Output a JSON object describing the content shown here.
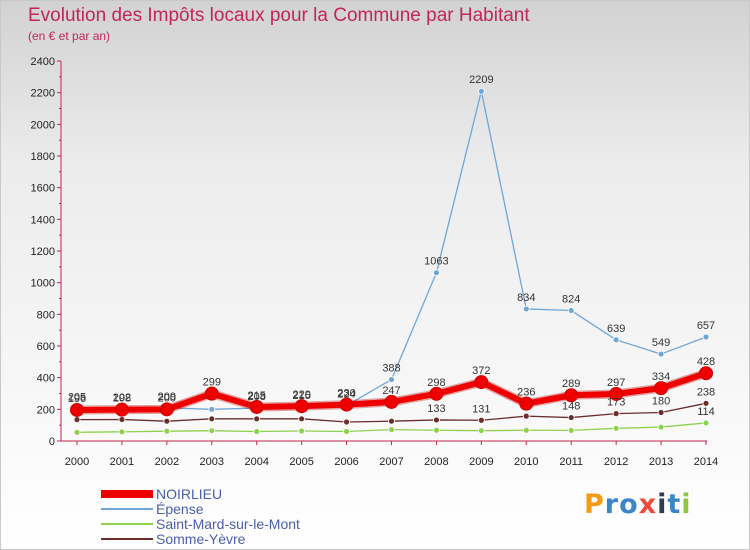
{
  "header": {
    "title": "Evolution des Impôts locaux pour la Commune par Habitant",
    "subtitle": "(en € et par an)"
  },
  "brand": {
    "letters": [
      "P",
      "r",
      "o",
      "x",
      "i",
      "t",
      "i"
    ],
    "colors": [
      "#f39c12",
      "#3a86c8",
      "#3a86c8",
      "#e74c3c",
      "#2c3e50",
      "#3a86c8",
      "#8dc63f"
    ]
  },
  "chart_data": {
    "type": "line",
    "title": "Evolution des Impôts locaux pour la Commune par Habitant",
    "subtitle": "(en € et par an)",
    "xlabel": "",
    "ylabel": "",
    "x": [
      "2000",
      "2001",
      "2002",
      "2003",
      "2004",
      "2005",
      "2006",
      "2007",
      "2008",
      "2009",
      "2010",
      "2011",
      "2012",
      "2013",
      "2014"
    ],
    "ylim": [
      0,
      2400
    ],
    "yticks": [
      0,
      200,
      400,
      600,
      800,
      1000,
      1200,
      1400,
      1600,
      1800,
      2000,
      2200,
      2400
    ],
    "grid": false,
    "legend_position": "bottom-left",
    "series": [
      {
        "name": "NOIRLIEU",
        "color": "#ee0000",
        "values": [
          196,
          198,
          200,
          299,
          215,
          220,
          230,
          247,
          298,
          372,
          236,
          289,
          297,
          334,
          428
        ],
        "labels": [
          "196",
          "198",
          "200",
          "299",
          "215",
          "220",
          "230",
          "247",
          "298",
          "372",
          "236",
          "289",
          "297",
          "334",
          "428"
        ]
      },
      {
        "name": "Épense",
        "color": "#6fa6d6",
        "values": [
          205,
          202,
          209,
          200,
          208,
          215,
          224,
          388,
          1063,
          2209,
          834,
          824,
          639,
          549,
          657
        ],
        "labels": [
          "205",
          "202",
          "209",
          "",
          "208",
          "215",
          "224",
          "388",
          "1063",
          "2209",
          "834",
          "824",
          "639",
          "549",
          "657"
        ]
      },
      {
        "name": "Saint-Mard-sur-le-Mont",
        "color": "#8fd14f",
        "values": [
          55,
          58,
          62,
          65,
          60,
          63,
          60,
          72,
          68,
          65,
          68,
          67,
          80,
          88,
          114
        ],
        "labels": [
          "",
          "",
          "",
          "",
          "",
          "",
          "",
          "",
          "",
          "",
          "",
          "",
          "",
          "",
          "114"
        ]
      },
      {
        "name": "Somme-Yèvre",
        "color": "#6b2c2c",
        "values": [
          135,
          136,
          125,
          140,
          140,
          140,
          120,
          125,
          133,
          131,
          157,
          148,
          173,
          180,
          238
        ],
        "labels": [
          "",
          "",
          "",
          "",
          "",
          "",
          "",
          "",
          "133",
          "131",
          "",
          "148",
          "173",
          "180",
          "238"
        ]
      }
    ]
  }
}
